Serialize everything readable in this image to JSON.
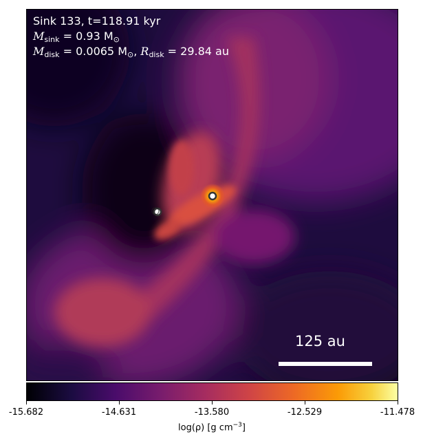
{
  "overlay": {
    "line1": "Sink 133, t=118.91 kyr",
    "m_sink_symbol": "M",
    "m_sink_sub": "sink",
    "m_sink_value": "= 0.93 M",
    "m_sink_unit_sub": "⊙",
    "m_disk_symbol": "M",
    "m_disk_sub": "disk",
    "m_disk_value": "= 0.0065 M",
    "m_disk_unit_sub": "⊙",
    "sep": ", ",
    "r_disk_symbol": "R",
    "r_disk_sub": "disk",
    "r_disk_value": "= 29.84 au"
  },
  "scale_bar": {
    "label": "125 au"
  },
  "colorbar": {
    "ticks": [
      "-15.682",
      "-14.631",
      "-13.580",
      "-12.529",
      "-11.478"
    ],
    "label_main": "log(ρ) [g cm",
    "label_exp": "−3",
    "label_close": "]",
    "colormap": "inferno"
  },
  "colors": {
    "text_overlay": "#ffffff",
    "sink_marker_fill": "#ffffff",
    "sink_marker_edge": "#333333"
  }
}
